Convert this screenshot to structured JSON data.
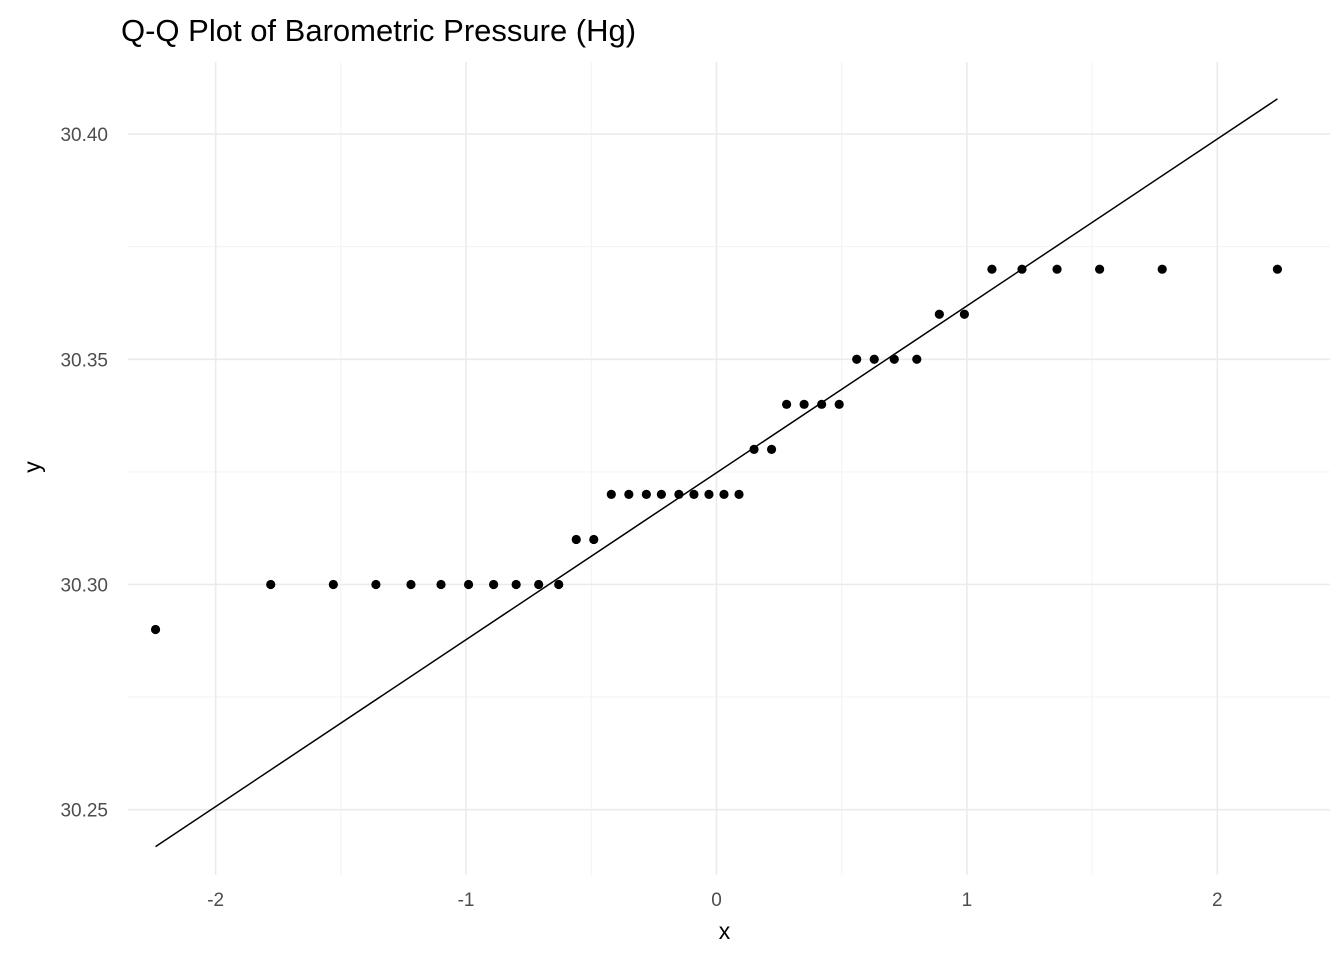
{
  "chart_data": {
    "type": "scatter",
    "title": "Q-Q Plot of Barometric Pressure (Hg)",
    "xlabel": "x",
    "ylabel": "y",
    "xlim": [
      -2.35,
      2.45
    ],
    "ylim": [
      30.2355,
      30.416
    ],
    "x_ticks": [
      -2,
      -1,
      0,
      1,
      2
    ],
    "x_tick_labels": [
      "-2",
      "-1",
      "0",
      "1",
      "2"
    ],
    "y_ticks": [
      30.25,
      30.3,
      30.35,
      30.4
    ],
    "y_tick_labels": [
      "30.25",
      "30.30",
      "30.35",
      "30.40"
    ],
    "grid": true,
    "legend": "none",
    "series": [
      {
        "kind": "points",
        "points": [
          {
            "x": -2.24,
            "y": 30.29
          },
          {
            "x": -1.78,
            "y": 30.3
          },
          {
            "x": -1.53,
            "y": 30.3
          },
          {
            "x": -1.36,
            "y": 30.3
          },
          {
            "x": -1.22,
            "y": 30.3
          },
          {
            "x": -1.1,
            "y": 30.3
          },
          {
            "x": -0.99,
            "y": 30.3
          },
          {
            "x": -0.89,
            "y": 30.3
          },
          {
            "x": -0.8,
            "y": 30.3
          },
          {
            "x": -0.71,
            "y": 30.3
          },
          {
            "x": -0.63,
            "y": 30.3
          },
          {
            "x": -0.56,
            "y": 30.31
          },
          {
            "x": -0.49,
            "y": 30.31
          },
          {
            "x": -0.42,
            "y": 30.32
          },
          {
            "x": -0.35,
            "y": 30.32
          },
          {
            "x": -0.28,
            "y": 30.32
          },
          {
            "x": -0.22,
            "y": 30.32
          },
          {
            "x": -0.15,
            "y": 30.32
          },
          {
            "x": -0.09,
            "y": 30.32
          },
          {
            "x": -0.03,
            "y": 30.32
          },
          {
            "x": 0.03,
            "y": 30.32
          },
          {
            "x": 0.09,
            "y": 30.32
          },
          {
            "x": 0.15,
            "y": 30.33
          },
          {
            "x": 0.22,
            "y": 30.33
          },
          {
            "x": 0.28,
            "y": 30.34
          },
          {
            "x": 0.35,
            "y": 30.34
          },
          {
            "x": 0.42,
            "y": 30.34
          },
          {
            "x": 0.49,
            "y": 30.34
          },
          {
            "x": 0.56,
            "y": 30.35
          },
          {
            "x": 0.63,
            "y": 30.35
          },
          {
            "x": 0.71,
            "y": 30.35
          },
          {
            "x": 0.8,
            "y": 30.35
          },
          {
            "x": 0.89,
            "y": 30.36
          },
          {
            "x": 0.99,
            "y": 30.36
          },
          {
            "x": 1.1,
            "y": 30.37
          },
          {
            "x": 1.22,
            "y": 30.37
          },
          {
            "x": 1.36,
            "y": 30.37
          },
          {
            "x": 1.53,
            "y": 30.37
          },
          {
            "x": 1.78,
            "y": 30.37
          },
          {
            "x": 2.24,
            "y": 30.37
          }
        ]
      },
      {
        "kind": "reference-line",
        "points": [
          {
            "x": -2.24,
            "y": 30.2418
          },
          {
            "x": 2.24,
            "y": 30.4078
          }
        ]
      }
    ],
    "colors": {
      "points": "#000000",
      "line": "#000000",
      "grid_major": "#ebebeb",
      "grid_minor": "#f3f3f3"
    }
  }
}
